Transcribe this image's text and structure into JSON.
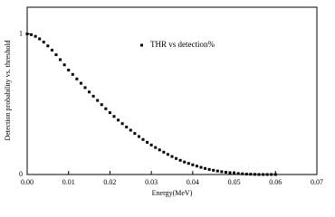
{
  "chart_data": {
    "type": "scatter",
    "x_label": "Energy(MeV)",
    "y_label": "Detection probability vs. threshold",
    "xlim": [
      0,
      0.07
    ],
    "ylim": [
      0,
      1.19
    ],
    "xticks": [
      {
        "value": 0,
        "label": "0.00"
      },
      0.01,
      0.02,
      0.03,
      0.04,
      0.05,
      0.06,
      0.07
    ],
    "yticks": [
      0,
      1
    ],
    "series": [
      {
        "name": "THR vs detection%",
        "color": "#000000",
        "x": [
          0,
          0.001,
          0.002,
          0.003,
          0.004,
          0.005,
          0.006,
          0.007,
          0.008,
          0.009,
          0.01,
          0.011,
          0.012,
          0.013,
          0.014,
          0.015,
          0.016,
          0.017,
          0.018,
          0.019,
          0.02,
          0.021,
          0.022,
          0.023,
          0.024,
          0.025,
          0.026,
          0.027,
          0.028,
          0.029,
          0.03,
          0.031,
          0.032,
          0.033,
          0.034,
          0.035,
          0.036,
          0.037,
          0.038,
          0.039,
          0.04,
          0.041,
          0.042,
          0.043,
          0.044,
          0.045,
          0.046,
          0.047,
          0.048,
          0.049,
          0.05,
          0.051,
          0.052,
          0.053,
          0.054,
          0.055,
          0.056,
          0.057,
          0.058,
          0.059,
          0.06
        ],
        "values": [
          1.0,
          0.995,
          0.983,
          0.965,
          0.942,
          0.915,
          0.885,
          0.852,
          0.817,
          0.78,
          0.743,
          0.712,
          0.68,
          0.649,
          0.618,
          0.587,
          0.557,
          0.527,
          0.497,
          0.468,
          0.44,
          0.413,
          0.387,
          0.362,
          0.338,
          0.315,
          0.292,
          0.27,
          0.249,
          0.229,
          0.21,
          0.192,
          0.175,
          0.159,
          0.143,
          0.128,
          0.114,
          0.101,
          0.089,
          0.079,
          0.069,
          0.06,
          0.051,
          0.043,
          0.036,
          0.03,
          0.025,
          0.02,
          0.016,
          0.013,
          0.01,
          0.007,
          0.005,
          0.003,
          0.002,
          0.001,
          0,
          0,
          0,
          0,
          0
        ]
      }
    ]
  }
}
